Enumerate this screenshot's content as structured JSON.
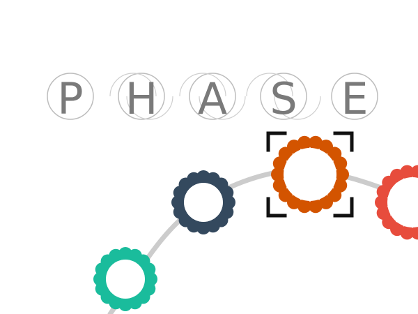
{
  "title": {
    "letters": [
      "P",
      "H",
      "A",
      "S",
      "E"
    ]
  },
  "colors": {
    "letter": "#7a7a7a",
    "ring": "#bdbdbd",
    "path": "#cccccc",
    "selection": "#111111",
    "gears": [
      "#1abc9c",
      "#34495e",
      "#d35400",
      "#e74c3c"
    ]
  },
  "gears": [
    {
      "name": "teal-gear",
      "color": "#1abc9c",
      "selected": false
    },
    {
      "name": "navy-gear",
      "color": "#34495e",
      "selected": false
    },
    {
      "name": "orange-gear",
      "color": "#d35400",
      "selected": true
    },
    {
      "name": "red-gear",
      "color": "#e74c3c",
      "selected": false
    }
  ]
}
